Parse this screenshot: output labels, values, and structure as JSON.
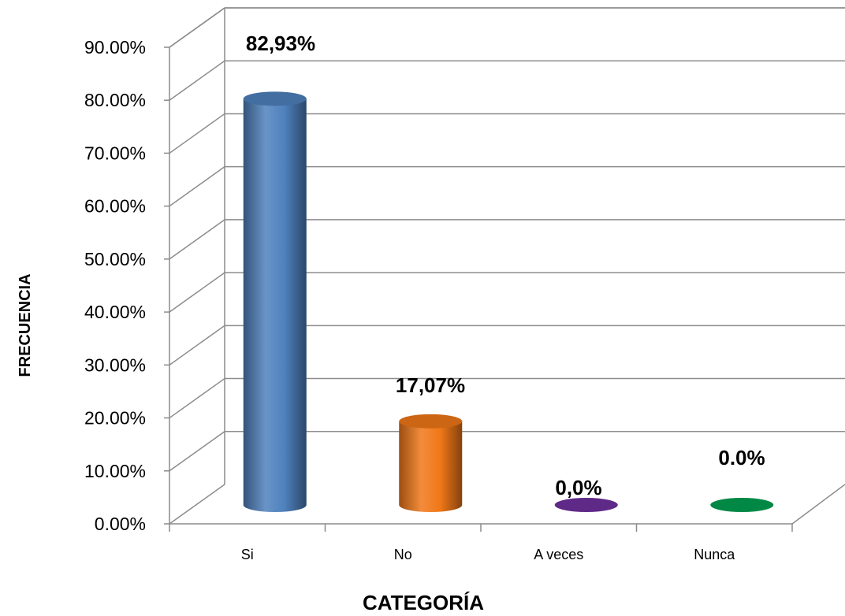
{
  "chart_data": {
    "type": "bar",
    "style": "3d-cylinder",
    "categories": [
      "Si",
      "No",
      "A veces",
      "Nunca"
    ],
    "values": [
      82.93,
      17.07,
      0.0,
      0.0
    ],
    "data_labels": [
      "82,93%",
      "17,07%",
      "0,0%",
      "0.0%"
    ],
    "colors": [
      "#4F81BD",
      "#F07818",
      "#7030A0",
      "#00A050"
    ],
    "xlabel": "CATEGORÍA",
    "ylabel": "FRECUENCIA",
    "ylim": [
      0,
      90
    ],
    "yticks": [
      "0.00%",
      "10.00%",
      "20.00%",
      "30.00%",
      "40.00%",
      "50.00%",
      "60.00%",
      "70.00%",
      "80.00%",
      "90.00%"
    ],
    "grid": true
  }
}
